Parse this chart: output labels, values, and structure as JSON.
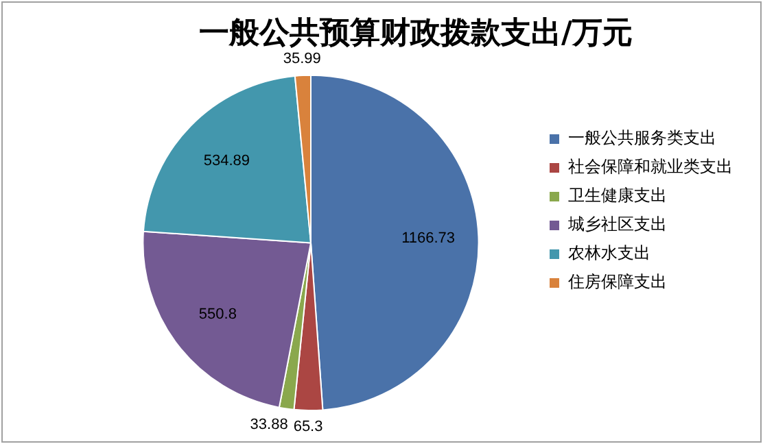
{
  "chart_data": {
    "type": "pie",
    "title": "一般公共预算财政拨款支出/万元",
    "categories": [
      "一般公共服务类支出",
      "社会保障和就业类支出",
      "卫生健康支出",
      "城乡社区支出",
      "农林水支出",
      "住房保障支出"
    ],
    "values": [
      1166.73,
      65.3,
      33.88,
      550.8,
      534.89,
      35.99
    ],
    "colors": [
      "#4a72a9",
      "#ab4643",
      "#8aa84d",
      "#735a93",
      "#4397ad",
      "#d9823c"
    ],
    "data_labels": true,
    "legend": "right"
  }
}
